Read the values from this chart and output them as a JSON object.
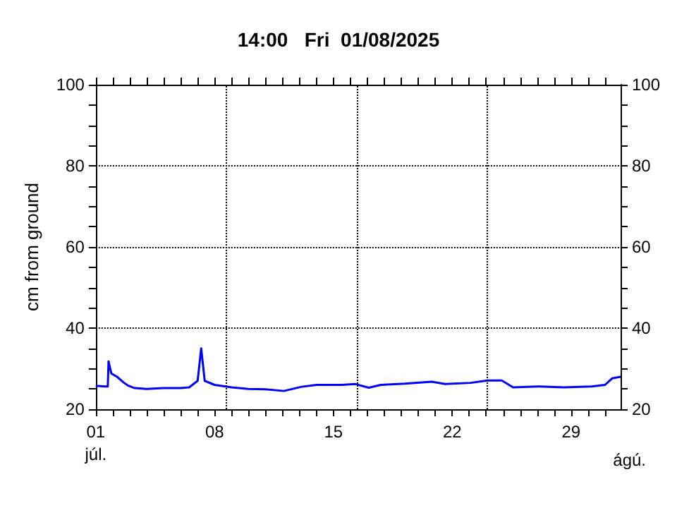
{
  "chart_data": {
    "type": "line",
    "title": "14:00   Fri  01/08/2025",
    "ylabel": "cm from ground",
    "xlim": [
      "2025-07-01T00:00",
      "2025-07-31T22:00"
    ],
    "xticks": [
      {
        "value": "2025-07-01",
        "label": "01\njúl."
      },
      {
        "value": "2025-07-02",
        "label": null
      },
      {
        "value": "2025-07-03",
        "label": null
      },
      {
        "value": "2025-07-04",
        "label": null
      },
      {
        "value": "2025-07-05",
        "label": null
      },
      {
        "value": "2025-07-06",
        "label": null
      },
      {
        "value": "2025-07-07",
        "label": null
      },
      {
        "value": "2025-07-08",
        "label": "08"
      },
      {
        "value": "2025-07-09",
        "label": null
      },
      {
        "value": "2025-07-10",
        "label": null
      },
      {
        "value": "2025-07-11",
        "label": null
      },
      {
        "value": "2025-07-12",
        "label": null
      },
      {
        "value": "2025-07-13",
        "label": null
      },
      {
        "value": "2025-07-14",
        "label": null
      },
      {
        "value": "2025-07-15",
        "label": "15"
      },
      {
        "value": "2025-07-16",
        "label": null
      },
      {
        "value": "2025-07-17",
        "label": null
      },
      {
        "value": "2025-07-18",
        "label": null
      },
      {
        "value": "2025-07-19",
        "label": null
      },
      {
        "value": "2025-07-20",
        "label": null
      },
      {
        "value": "2025-07-21",
        "label": null
      },
      {
        "value": "2025-07-22",
        "label": "22"
      },
      {
        "value": "2025-07-23",
        "label": null
      },
      {
        "value": "2025-07-24",
        "label": null
      },
      {
        "value": "2025-07-25",
        "label": null
      },
      {
        "value": "2025-07-26",
        "label": null
      },
      {
        "value": "2025-07-27",
        "label": null
      },
      {
        "value": "2025-07-28",
        "label": null
      },
      {
        "value": "2025-07-29",
        "label": "29"
      },
      {
        "value": "2025-07-30",
        "label": null
      },
      {
        "value": "2025-07-31",
        "label": null
      }
    ],
    "annotations": [
      "ágú."
    ],
    "ylim": [
      20,
      100
    ],
    "yticks": [
      20,
      {
        "value": 25,
        "label": null
      },
      {
        "value": 30,
        "label": null
      },
      {
        "value": 35,
        "label": null
      },
      40,
      {
        "value": 45,
        "label": null
      },
      {
        "value": 50,
        "label": null
      },
      {
        "value": 55,
        "label": null
      },
      60,
      {
        "value": 65,
        "label": null
      },
      {
        "value": 70,
        "label": null
      },
      {
        "value": 75,
        "label": null
      },
      80,
      {
        "value": 85,
        "label": null
      },
      {
        "value": 90,
        "label": null
      },
      {
        "value": 95,
        "label": null
      },
      100
    ],
    "y2lim": [
      20,
      100
    ],
    "y2ticks": [
      20,
      {
        "value": 25,
        "label": null
      },
      {
        "value": 30,
        "label": null
      },
      {
        "value": 35,
        "label": null
      },
      40,
      {
        "value": 45,
        "label": null
      },
      {
        "value": 50,
        "label": null
      },
      {
        "value": 55,
        "label": null
      },
      60,
      {
        "value": 65,
        "label": null
      },
      {
        "value": 70,
        "label": null
      },
      {
        "value": 75,
        "label": null
      },
      80,
      {
        "value": 85,
        "label": null
      },
      {
        "value": 90,
        "label": null
      },
      {
        "value": 95,
        "label": null
      },
      100
    ],
    "grid": "y",
    "marker": "none",
    "line_style": "solid",
    "ref_lines": [
      {
        "axis": "x",
        "value": "2025-07-08T17:00",
        "label": null,
        "color": "#000000",
        "line_style": "dotted"
      },
      {
        "axis": "x",
        "value": "2025-07-16T10:00",
        "label": null,
        "color": "#000000",
        "line_style": "dotted"
      },
      {
        "axis": "x",
        "value": "2025-07-24T02:00",
        "label": null,
        "color": "#000000",
        "line_style": "dotted"
      }
    ],
    "x": [
      "2025-07-01T00:00",
      "2025-07-01T12:00",
      "2025-07-01T17:00",
      "2025-07-01T18:00",
      "2025-07-01T22:00",
      "2025-07-02T06:00",
      "2025-07-02T16:00",
      "2025-07-02T22:00",
      "2025-07-03T07:00",
      "2025-07-04T00:00",
      "2025-07-05T00:00",
      "2025-07-06T00:00",
      "2025-07-06T12:00",
      "2025-07-07T00:00",
      "2025-07-07T05:00",
      "2025-07-07T10:00",
      "2025-07-08T00:00",
      "2025-07-09T00:00",
      "2025-07-10T00:00",
      "2025-07-11T00:00",
      "2025-07-12T02:00",
      "2025-07-13T02:00",
      "2025-07-14T00:00",
      "2025-07-15T12:00",
      "2025-07-16T07:00",
      "2025-07-17T02:00",
      "2025-07-17T19:00",
      "2025-07-19T05:00",
      "2025-07-20T19:00",
      "2025-07-21T14:00",
      "2025-07-23T02:00",
      "2025-07-24T02:00",
      "2025-07-24T22:00",
      "2025-07-25T14:00",
      "2025-07-27T02:00",
      "2025-07-28T14:00",
      "2025-07-30T05:00",
      "2025-07-31T00:00",
      "2025-07-31T10:00",
      "2025-07-31T22:00"
    ],
    "series": [
      {
        "color": "#0000ff",
        "values": [
          25.8,
          25.6,
          25.6,
          31.8,
          28.8,
          28.0,
          26.5,
          25.8,
          25.2,
          25.0,
          25.2,
          25.2,
          25.4,
          27.0,
          35.0,
          27.0,
          26.0,
          25.4,
          25.0,
          24.9,
          24.5,
          25.5,
          26.0,
          26.0,
          26.2,
          25.3,
          26.0,
          26.3,
          26.8,
          26.2,
          26.5,
          27.1,
          27.1,
          25.4,
          25.6,
          25.4,
          25.6,
          26.0,
          27.6,
          28.0
        ]
      }
    ]
  }
}
